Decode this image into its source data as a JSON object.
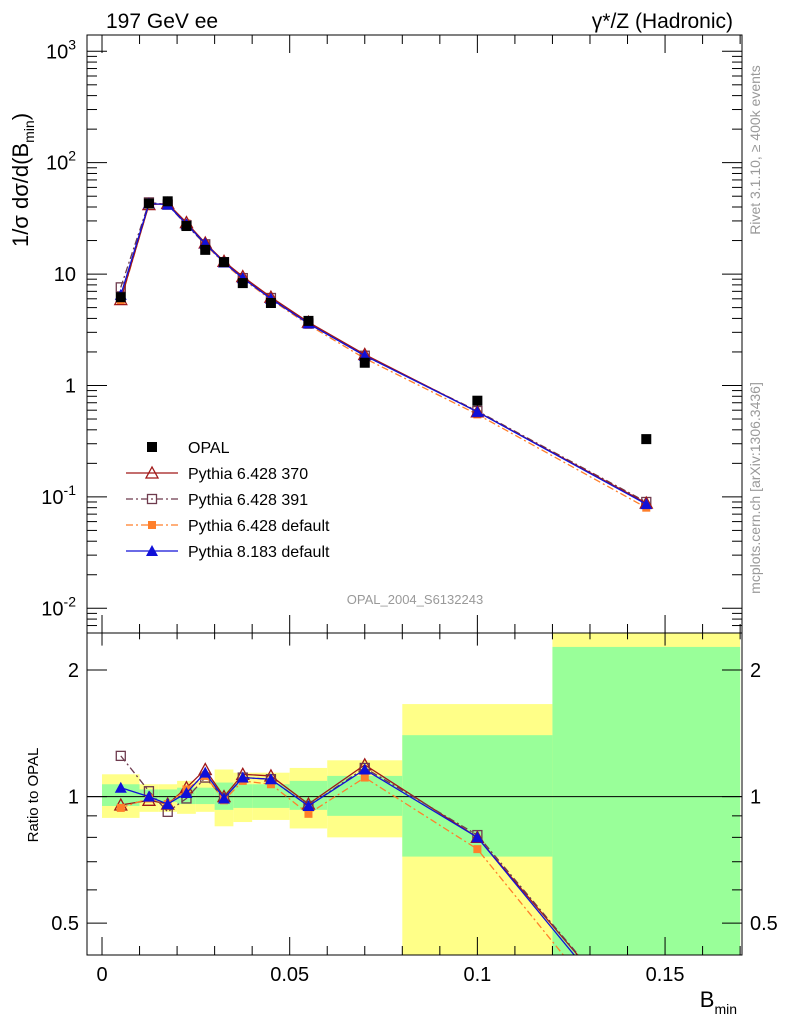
{
  "header": {
    "left": "197 GeV ee",
    "right": "γ*/Z (Hadronic)"
  },
  "side_labels": {
    "rivet": "Rivet 3.1.10, ≥ 400k events",
    "mcplots": "mcplots.cern.ch [arXiv:1306.3436]"
  },
  "watermark": "OPAL_2004_S6132243",
  "colors": {
    "data": "#000000",
    "p370": "#a01818",
    "p391": "#6e3b4e",
    "p6def": "#ff7f2a",
    "p8def": "#1010d8",
    "band_green": "#99ff99",
    "band_yellow": "#ffff88"
  },
  "chart_data": [
    {
      "type": "scatter",
      "panel": "main",
      "ylabel": "1/σ dσ/d(B",
      "ylabel_sub": "min",
      "yscale": "log",
      "xlim": [
        -0.004,
        0.1705
      ],
      "ylim": [
        0.006,
        1400
      ],
      "y_ticks": [
        {
          "value": 0.01,
          "mantissa": "10",
          "exp": "-2"
        },
        {
          "value": 0.1,
          "mantissa": "10",
          "exp": "-1"
        },
        {
          "value": 1,
          "mantissa": "1",
          "exp": ""
        },
        {
          "value": 10,
          "mantissa": "10",
          "exp": ""
        },
        {
          "value": 100,
          "mantissa": "10",
          "exp": "2"
        },
        {
          "value": 1000,
          "mantissa": "10",
          "exp": "3"
        }
      ],
      "x": [
        0.005,
        0.0125,
        0.0175,
        0.0225,
        0.0275,
        0.0325,
        0.0375,
        0.045,
        0.055,
        0.07,
        0.1,
        0.145
      ],
      "legend": [
        {
          "label": "OPAL",
          "key": "data"
        },
        {
          "label": "Pythia 6.428 370",
          "key": "p370"
        },
        {
          "label": "Pythia 6.428 391",
          "key": "p391"
        },
        {
          "label": "Pythia 6.428 default",
          "key": "p6def"
        },
        {
          "label": "Pythia 8.183 default",
          "key": "p8def"
        }
      ],
      "series": [
        {
          "key": "data",
          "name": "OPAL",
          "values": [
            6.2,
            43,
            45,
            27,
            16.5,
            12.8,
            8.3,
            5.5,
            3.8,
            1.6,
            0.73,
            0.33
          ]
        },
        {
          "key": "p370",
          "name": "Pythia 6.428 370",
          "values": [
            5.9,
            42,
            43,
            29,
            19,
            13,
            9.5,
            6.2,
            3.7,
            1.9,
            0.58,
            0.088
          ]
        },
        {
          "key": "p391",
          "name": "Pythia 6.428 391",
          "values": [
            7.6,
            44,
            42,
            27.5,
            18.5,
            12.8,
            9.2,
            6.1,
            3.6,
            1.85,
            0.59,
            0.09
          ]
        },
        {
          "key": "p6def",
          "name": "Pythia 6.428 default",
          "values": [
            5.8,
            42,
            43,
            28.5,
            18.5,
            12.5,
            9.0,
            5.9,
            3.5,
            1.75,
            0.55,
            0.08
          ]
        },
        {
          "key": "p8def",
          "name": "Pythia 8.183 default",
          "values": [
            6.5,
            43,
            42,
            28,
            18.8,
            12.7,
            9.2,
            6.0,
            3.6,
            1.85,
            0.58,
            0.086
          ]
        }
      ]
    },
    {
      "type": "line",
      "panel": "ratio",
      "ylabel": "Ratio to OPAL",
      "xlabel": "B",
      "xlabel_sub": "min",
      "yscale": "log",
      "xlim": [
        -0.004,
        0.1705
      ],
      "ylim": [
        0.42,
        2.45
      ],
      "y_ticks": [
        0.5,
        1,
        2
      ],
      "y_tick_labels": [
        "0.5",
        "1",
        "2"
      ],
      "x_ticks": [
        0,
        0.05,
        0.1,
        0.15
      ],
      "x_tick_labels": [
        "0",
        "0.05",
        "0.1",
        "0.15"
      ],
      "bands": [
        {
          "x0": 0.0,
          "x1": 0.01,
          "green": [
            0.95,
            1.07
          ],
          "yellow": [
            0.89,
            1.13
          ]
        },
        {
          "x0": 0.01,
          "x1": 0.015,
          "green": [
            0.97,
            1.04
          ],
          "yellow": [
            0.92,
            1.07
          ]
        },
        {
          "x0": 0.015,
          "x1": 0.02,
          "green": [
            0.97,
            1.04
          ],
          "yellow": [
            0.92,
            1.07
          ]
        },
        {
          "x0": 0.02,
          "x1": 0.025,
          "green": [
            0.96,
            1.05
          ],
          "yellow": [
            0.91,
            1.09
          ]
        },
        {
          "x0": 0.025,
          "x1": 0.03,
          "green": [
            0.96,
            1.05
          ],
          "yellow": [
            0.92,
            1.09
          ]
        },
        {
          "x0": 0.03,
          "x1": 0.035,
          "green": [
            0.93,
            1.08
          ],
          "yellow": [
            0.85,
            1.16
          ]
        },
        {
          "x0": 0.035,
          "x1": 0.04,
          "green": [
            0.94,
            1.07
          ],
          "yellow": [
            0.87,
            1.14
          ]
        },
        {
          "x0": 0.04,
          "x1": 0.05,
          "green": [
            0.94,
            1.07
          ],
          "yellow": [
            0.88,
            1.14
          ]
        },
        {
          "x0": 0.05,
          "x1": 0.06,
          "green": [
            0.93,
            1.09
          ],
          "yellow": [
            0.84,
            1.17
          ]
        },
        {
          "x0": 0.06,
          "x1": 0.08,
          "green": [
            0.9,
            1.12
          ],
          "yellow": [
            0.8,
            1.22
          ]
        },
        {
          "x0": 0.08,
          "x1": 0.12,
          "green": [
            0.72,
            1.4
          ],
          "yellow": [
            0.33,
            1.66
          ]
        },
        {
          "x0": 0.12,
          "x1": 0.17,
          "green": [
            0.33,
            2.27
          ],
          "yellow": [
            0.33,
            2.47
          ]
        }
      ],
      "series": [
        {
          "key": "p370",
          "name": "Pythia 6.428 370",
          "values": [
            0.955,
            0.98,
            0.96,
            1.05,
            1.16,
            1.0,
            1.13,
            1.12,
            0.96,
            1.19,
            0.8,
            0.27
          ]
        },
        {
          "key": "p391",
          "name": "Pythia 6.428 391",
          "values": [
            1.25,
            1.03,
            0.92,
            0.99,
            1.11,
            0.99,
            1.11,
            1.1,
            0.95,
            1.17,
            0.81,
            0.27
          ]
        },
        {
          "key": "p6def",
          "name": "Pythia 6.428 default",
          "values": [
            0.94,
            0.99,
            0.96,
            1.04,
            1.12,
            0.98,
            1.09,
            1.07,
            0.91,
            1.11,
            0.75,
            0.24
          ]
        },
        {
          "key": "p8def",
          "name": "Pythia 8.183 default",
          "values": [
            1.05,
            1.0,
            0.96,
            1.02,
            1.14,
            0.99,
            1.11,
            1.1,
            0.95,
            1.16,
            0.8,
            0.26
          ]
        }
      ]
    }
  ]
}
